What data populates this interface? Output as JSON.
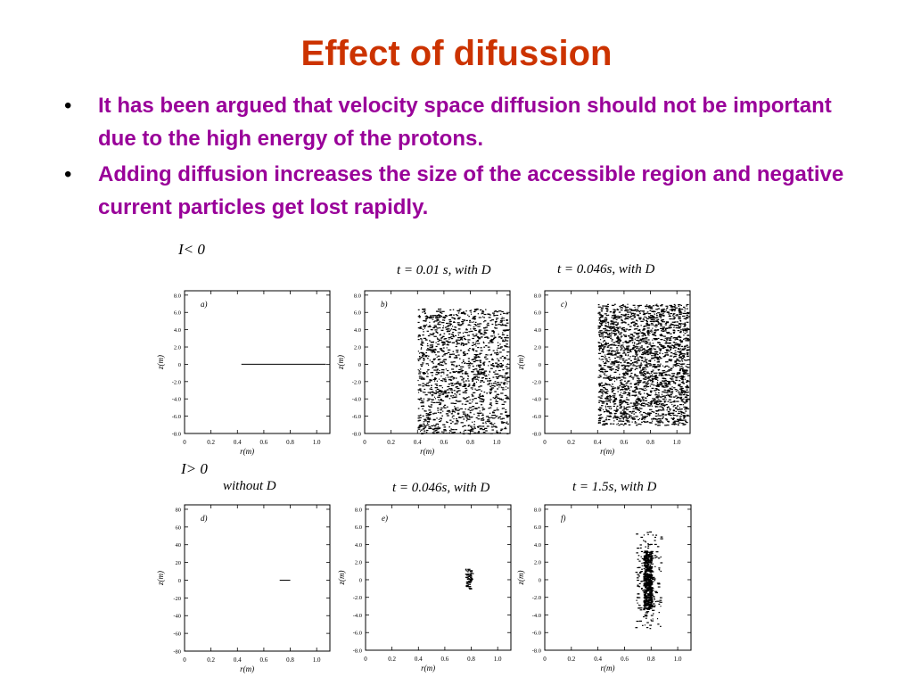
{
  "slide": {
    "title": "Effect of difussion",
    "bullets": [
      "It has been argued that velocity space diffusion should not be important due to the high energy of the protons.",
      "Adding diffusion increases the size of the accessible region and negative current particles get lost rapidly."
    ],
    "colors": {
      "title": "#CC3300",
      "bullets": "#990099"
    }
  },
  "figure": {
    "top_condition": "I< 0",
    "bottom_condition": "I> 0"
  },
  "chart_data": [
    {
      "type": "scatter",
      "panel_label": "a)",
      "title": "",
      "xlabel": "r(m)",
      "ylabel": "z(m)",
      "xticks": [
        "0",
        "0.2",
        "0.4",
        "0.6",
        "0.8",
        "1.0"
      ],
      "yticks": [
        "8.0",
        "6.0",
        "4.0",
        "2.0",
        "0",
        "-2.0",
        "-4.0",
        "-6.0",
        "-8.0"
      ],
      "xlim": [
        0,
        1.1
      ],
      "ylim": [
        -8.0,
        8.5
      ],
      "segment": {
        "x": [
          0.43,
          1.07
        ],
        "y": 0
      },
      "cloud": null
    },
    {
      "type": "scatter",
      "panel_label": "b)",
      "title": "t = 0.01 s, with D",
      "xlabel": "r(m)",
      "ylabel": "z(m)",
      "xticks": [
        "0",
        "0.2",
        "0.4",
        "0.6",
        "0.8",
        "1.0"
      ],
      "yticks": [
        "8.0",
        "6.0",
        "4.0",
        "2.0",
        "0",
        "-2.0",
        "-4.0",
        "-6.0",
        "-8.0"
      ],
      "xlim": [
        0,
        1.1
      ],
      "ylim": [
        -8.0,
        8.5
      ],
      "segment": null,
      "cloud": {
        "xrange": [
          0.4,
          1.08
        ],
        "yrange": [
          -8.0,
          6.5
        ],
        "count": 1500
      }
    },
    {
      "type": "scatter",
      "panel_label": "c)",
      "title": "t = 0.046s, with D",
      "xlabel": "r(m)",
      "ylabel": "z(m)",
      "xticks": [
        "0",
        "0.2",
        "0.4",
        "0.6",
        "0.8",
        "1.0"
      ],
      "yticks": [
        "8.0",
        "6.0",
        "4.0",
        "2.0",
        "0",
        "-2.0",
        "-4.0",
        "-6.0",
        "-8.0"
      ],
      "xlim": [
        0,
        1.1
      ],
      "ylim": [
        -8.0,
        8.5
      ],
      "segment": null,
      "cloud": {
        "xrange": [
          0.4,
          1.08
        ],
        "yrange": [
          -7.0,
          7.0
        ],
        "count": 2300
      }
    },
    {
      "type": "scatter",
      "panel_label": "d)",
      "title": "without D",
      "xlabel": "r(m)",
      "ylabel": "z(m)",
      "xticks": [
        "0",
        "0.2",
        "0.4",
        "0.6",
        "0.8",
        "1.0"
      ],
      "yticks": [
        "80",
        "60",
        "40",
        "20",
        "0",
        "-20",
        "-40",
        "-60",
        "-80"
      ],
      "xlim": [
        0,
        1.1
      ],
      "ylim": [
        -80,
        85
      ],
      "segment": {
        "x": [
          0.72,
          0.8
        ],
        "y": 0
      },
      "cloud": null
    },
    {
      "type": "scatter",
      "panel_label": "e)",
      "title": "t = 0.046s, with D",
      "xlabel": "r(m)",
      "ylabel": "z(m)",
      "xticks": [
        "0",
        "0.2",
        "0.4",
        "0.6",
        "0.8",
        "1.0"
      ],
      "yticks": [
        "8.0",
        "6.0",
        "4.0",
        "2.0",
        "0",
        "-2.0",
        "-4.0",
        "-6.0",
        "-8.0"
      ],
      "xlim": [
        0,
        1.1
      ],
      "ylim": [
        -8.0,
        8.5
      ],
      "segment": null,
      "cloud": {
        "xrange": [
          0.75,
          0.8
        ],
        "yrange": [
          -1.0,
          1.3
        ],
        "count": 60
      }
    },
    {
      "type": "scatter",
      "panel_label": "f)",
      "title": "t = 1.5s, with D",
      "xlabel": "r(m)",
      "ylabel": "z(m)",
      "xticks": [
        "0",
        "0.2",
        "0.4",
        "0.6",
        "0.8",
        "1.0"
      ],
      "yticks": [
        "8.0",
        "6.0",
        "4.0",
        "2.0",
        "0",
        "-2.0",
        "-4.0",
        "-6.0",
        "-8.0"
      ],
      "xlim": [
        0,
        1.1
      ],
      "ylim": [
        -8.0,
        8.5
      ],
      "segment": null,
      "cloud": {
        "xrange": [
          0.68,
          0.87
        ],
        "yrange": [
          -5.5,
          5.5
        ],
        "count": 700,
        "dense_core": [
          0.74,
          0.8
        ]
      }
    }
  ]
}
